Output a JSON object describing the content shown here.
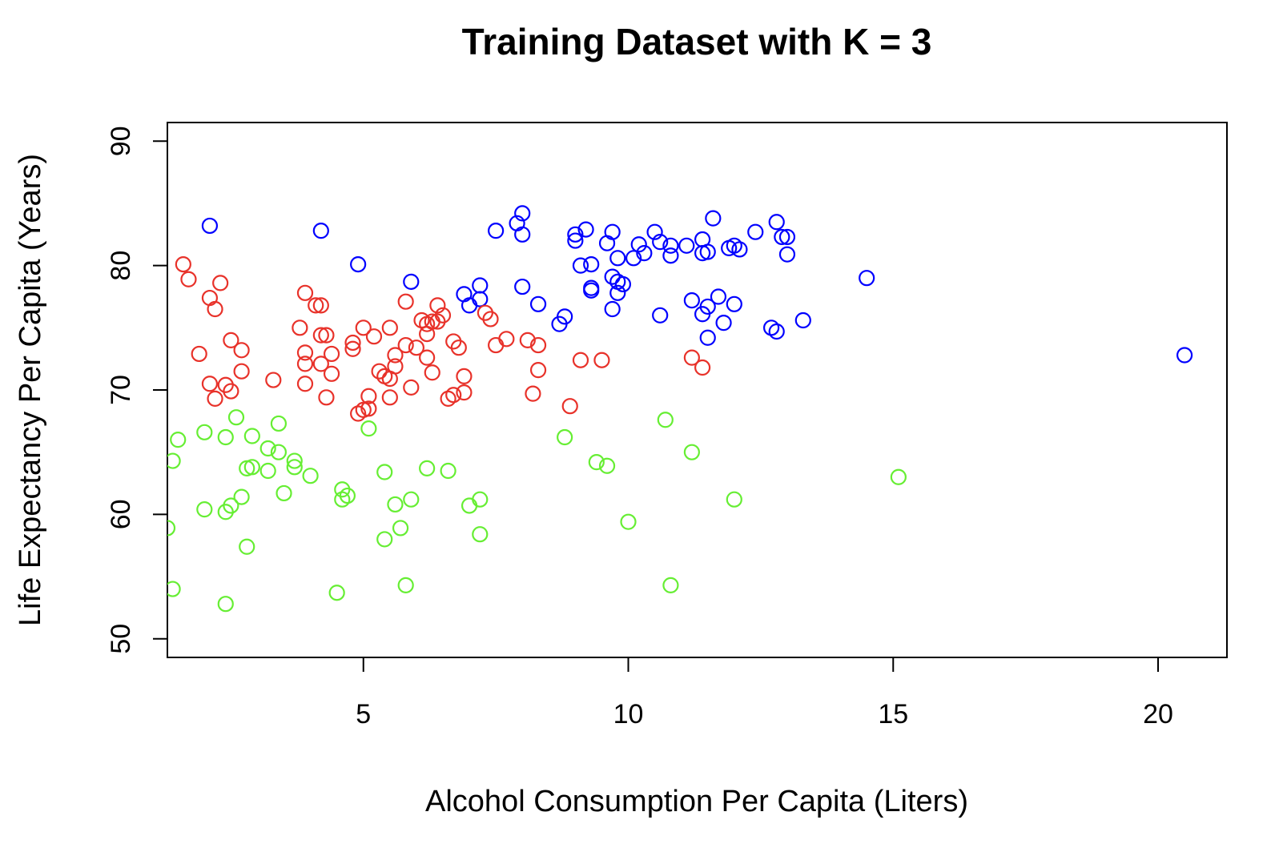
{
  "chart_data": {
    "type": "scatter",
    "title": "Training Dataset with K = 3",
    "xlabel": "Alcohol Consumption Per Capita (Liters)",
    "ylabel": "Life Expectancy Per Capita (Years)",
    "xlim": [
      1.3,
      21.3
    ],
    "ylim": [
      48.5,
      91.5
    ],
    "xticks": [
      5,
      10,
      15,
      20
    ],
    "yticks": [
      50,
      60,
      70,
      80,
      90
    ],
    "grid": false,
    "marker": "open-circle",
    "series": [
      {
        "color": "#0000ff",
        "points": [
          [
            2.1,
            83.2
          ],
          [
            4.2,
            82.8
          ],
          [
            4.9,
            80.1
          ],
          [
            5.9,
            78.7
          ],
          [
            6.9,
            77.7
          ],
          [
            7.0,
            76.8
          ],
          [
            7.2,
            77.3
          ],
          [
            7.2,
            78.4
          ],
          [
            7.5,
            82.8
          ],
          [
            7.9,
            83.4
          ],
          [
            8.0,
            84.2
          ],
          [
            8.0,
            82.5
          ],
          [
            8.0,
            78.3
          ],
          [
            8.3,
            76.9
          ],
          [
            8.7,
            75.3
          ],
          [
            8.8,
            75.9
          ],
          [
            9.0,
            82.0
          ],
          [
            9.0,
            82.5
          ],
          [
            9.1,
            80.0
          ],
          [
            9.2,
            82.9
          ],
          [
            9.3,
            80.1
          ],
          [
            9.3,
            78.2
          ],
          [
            9.3,
            78.0
          ],
          [
            9.6,
            81.8
          ],
          [
            9.7,
            82.7
          ],
          [
            9.7,
            79.1
          ],
          [
            9.7,
            76.5
          ],
          [
            9.8,
            78.7
          ],
          [
            9.8,
            77.8
          ],
          [
            9.8,
            80.6
          ],
          [
            9.9,
            78.5
          ],
          [
            10.1,
            80.6
          ],
          [
            10.2,
            81.7
          ],
          [
            10.3,
            81.0
          ],
          [
            10.5,
            82.7
          ],
          [
            10.6,
            81.9
          ],
          [
            10.6,
            76.0
          ],
          [
            10.8,
            81.6
          ],
          [
            10.8,
            80.8
          ],
          [
            11.1,
            81.6
          ],
          [
            11.2,
            77.2
          ],
          [
            11.4,
            82.1
          ],
          [
            11.4,
            76.1
          ],
          [
            11.4,
            81.0
          ],
          [
            11.5,
            81.1
          ],
          [
            11.5,
            74.2
          ],
          [
            11.5,
            76.7
          ],
          [
            11.6,
            83.8
          ],
          [
            11.7,
            77.5
          ],
          [
            11.8,
            75.4
          ],
          [
            11.9,
            81.4
          ],
          [
            12.0,
            81.6
          ],
          [
            12.0,
            76.9
          ],
          [
            12.1,
            81.3
          ],
          [
            12.4,
            82.7
          ],
          [
            12.7,
            75.0
          ],
          [
            12.8,
            83.5
          ],
          [
            12.8,
            74.7
          ],
          [
            12.9,
            82.3
          ],
          [
            13.0,
            82.3
          ],
          [
            13.0,
            80.9
          ],
          [
            13.3,
            75.6
          ],
          [
            14.5,
            79.0
          ],
          [
            20.5,
            72.8
          ]
        ]
      },
      {
        "color": "#e8322a",
        "points": [
          [
            1.6,
            80.1
          ],
          [
            1.7,
            78.9
          ],
          [
            1.9,
            72.9
          ],
          [
            2.1,
            77.4
          ],
          [
            2.2,
            76.5
          ],
          [
            2.1,
            70.5
          ],
          [
            2.2,
            69.3
          ],
          [
            2.3,
            78.6
          ],
          [
            2.4,
            70.4
          ],
          [
            2.5,
            74.0
          ],
          [
            2.5,
            69.9
          ],
          [
            2.7,
            71.5
          ],
          [
            2.7,
            73.2
          ],
          [
            3.3,
            70.8
          ],
          [
            3.8,
            75.0
          ],
          [
            3.9,
            72.1
          ],
          [
            3.9,
            73.0
          ],
          [
            3.9,
            70.5
          ],
          [
            3.9,
            77.8
          ],
          [
            4.1,
            76.8
          ],
          [
            4.2,
            76.8
          ],
          [
            4.2,
            72.1
          ],
          [
            4.2,
            74.4
          ],
          [
            4.3,
            74.4
          ],
          [
            4.3,
            69.4
          ],
          [
            4.4,
            72.9
          ],
          [
            4.4,
            71.3
          ],
          [
            4.8,
            73.3
          ],
          [
            4.8,
            73.8
          ],
          [
            4.9,
            68.1
          ],
          [
            5.0,
            68.4
          ],
          [
            5.0,
            75.0
          ],
          [
            5.1,
            69.5
          ],
          [
            5.2,
            74.3
          ],
          [
            5.1,
            68.5
          ],
          [
            5.3,
            71.5
          ],
          [
            5.4,
            71.1
          ],
          [
            5.5,
            70.9
          ],
          [
            5.5,
            75.0
          ],
          [
            5.5,
            69.4
          ],
          [
            5.6,
            71.9
          ],
          [
            5.6,
            72.8
          ],
          [
            5.8,
            77.1
          ],
          [
            5.8,
            73.6
          ],
          [
            5.9,
            70.2
          ],
          [
            6.0,
            73.4
          ],
          [
            6.1,
            75.6
          ],
          [
            6.2,
            75.3
          ],
          [
            6.2,
            74.5
          ],
          [
            6.2,
            72.6
          ],
          [
            6.3,
            71.4
          ],
          [
            6.3,
            75.5
          ],
          [
            6.4,
            75.5
          ],
          [
            6.4,
            76.8
          ],
          [
            6.5,
            76.0
          ],
          [
            6.6,
            69.3
          ],
          [
            6.7,
            69.6
          ],
          [
            6.7,
            73.9
          ],
          [
            6.8,
            73.4
          ],
          [
            6.9,
            71.1
          ],
          [
            6.9,
            69.8
          ],
          [
            7.3,
            76.2
          ],
          [
            7.4,
            75.7
          ],
          [
            7.5,
            73.6
          ],
          [
            7.7,
            74.1
          ],
          [
            8.1,
            74.0
          ],
          [
            8.2,
            69.7
          ],
          [
            8.3,
            73.6
          ],
          [
            8.3,
            71.6
          ],
          [
            8.9,
            68.7
          ],
          [
            9.1,
            72.4
          ],
          [
            9.5,
            72.4
          ],
          [
            11.2,
            72.6
          ],
          [
            11.4,
            71.8
          ]
        ]
      },
      {
        "color": "#66ee33",
        "points": [
          [
            1.3,
            58.9
          ],
          [
            1.4,
            54.0
          ],
          [
            1.4,
            64.3
          ],
          [
            1.5,
            66.0
          ],
          [
            2.0,
            66.6
          ],
          [
            2.0,
            60.4
          ],
          [
            2.4,
            60.2
          ],
          [
            2.4,
            66.2
          ],
          [
            2.5,
            60.7
          ],
          [
            2.6,
            67.8
          ],
          [
            2.7,
            61.4
          ],
          [
            2.8,
            57.4
          ],
          [
            2.8,
            63.7
          ],
          [
            2.9,
            66.3
          ],
          [
            2.9,
            63.8
          ],
          [
            2.4,
            52.8
          ],
          [
            3.2,
            65.3
          ],
          [
            3.2,
            63.5
          ],
          [
            3.4,
            65.0
          ],
          [
            3.4,
            67.3
          ],
          [
            3.5,
            61.7
          ],
          [
            3.7,
            63.8
          ],
          [
            3.7,
            64.3
          ],
          [
            4.0,
            63.1
          ],
          [
            4.6,
            62.0
          ],
          [
            4.6,
            61.2
          ],
          [
            4.7,
            61.5
          ],
          [
            4.5,
            53.7
          ],
          [
            5.1,
            66.9
          ],
          [
            5.4,
            63.4
          ],
          [
            5.4,
            58.0
          ],
          [
            5.6,
            60.8
          ],
          [
            5.7,
            58.9
          ],
          [
            5.8,
            54.3
          ],
          [
            5.9,
            61.2
          ],
          [
            6.2,
            63.7
          ],
          [
            6.6,
            63.5
          ],
          [
            7.0,
            60.7
          ],
          [
            7.2,
            61.2
          ],
          [
            7.2,
            58.4
          ],
          [
            8.8,
            66.2
          ],
          [
            9.4,
            64.2
          ],
          [
            9.6,
            63.9
          ],
          [
            10.0,
            59.4
          ],
          [
            10.7,
            67.6
          ],
          [
            10.8,
            54.3
          ],
          [
            11.2,
            65.0
          ],
          [
            12.0,
            61.2
          ],
          [
            15.1,
            63.0
          ]
        ]
      }
    ]
  }
}
